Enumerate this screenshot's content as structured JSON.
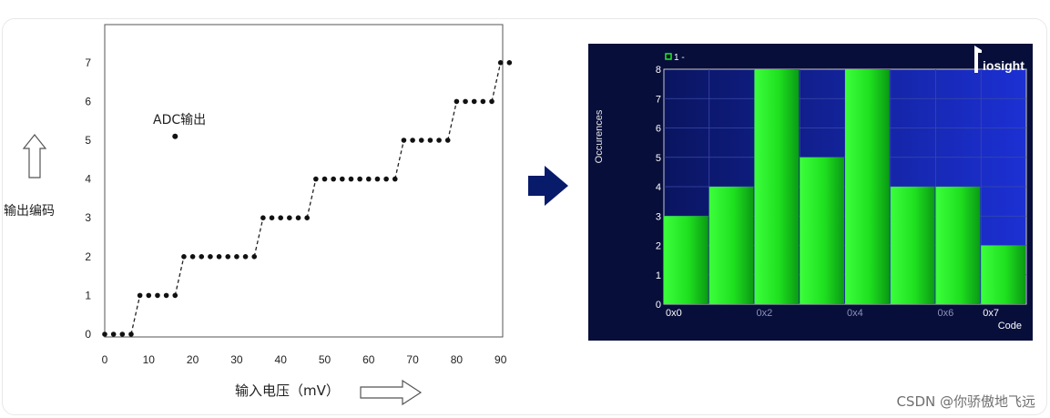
{
  "left_figure": {
    "y_axis_label": "输出编码",
    "x_axis_label": "输入电压（mV）",
    "annotation": "ADC输出",
    "chart_data": {
      "type": "scatter",
      "x_ticks": [
        0,
        10,
        20,
        30,
        40,
        50,
        60,
        70,
        80,
        90
      ],
      "y_ticks": [
        0,
        1,
        2,
        3,
        4,
        5,
        6,
        7
      ],
      "xlim": [
        0,
        95
      ],
      "ylim": [
        -0.2,
        8
      ],
      "points": [
        [
          0,
          0
        ],
        [
          2,
          0
        ],
        [
          4,
          0
        ],
        [
          6,
          0
        ],
        [
          8,
          1
        ],
        [
          10,
          1
        ],
        [
          12,
          1
        ],
        [
          14,
          1
        ],
        [
          16,
          1
        ],
        [
          18,
          2
        ],
        [
          20,
          2
        ],
        [
          22,
          2
        ],
        [
          24,
          2
        ],
        [
          26,
          2
        ],
        [
          28,
          2
        ],
        [
          30,
          2
        ],
        [
          32,
          2
        ],
        [
          34,
          2
        ],
        [
          36,
          3
        ],
        [
          38,
          3
        ],
        [
          40,
          3
        ],
        [
          42,
          3
        ],
        [
          44,
          3
        ],
        [
          46,
          3
        ],
        [
          48,
          4
        ],
        [
          50,
          4
        ],
        [
          52,
          4
        ],
        [
          54,
          4
        ],
        [
          56,
          4
        ],
        [
          58,
          4
        ],
        [
          60,
          4
        ],
        [
          62,
          4
        ],
        [
          64,
          4
        ],
        [
          66,
          4
        ],
        [
          68,
          5
        ],
        [
          70,
          5
        ],
        [
          72,
          5
        ],
        [
          74,
          5
        ],
        [
          76,
          5
        ],
        [
          78,
          5
        ],
        [
          80,
          6
        ],
        [
          82,
          6
        ],
        [
          84,
          6
        ],
        [
          86,
          6
        ],
        [
          88,
          6
        ],
        [
          90,
          7
        ],
        [
          92,
          7
        ]
      ],
      "legend_marker": [
        16,
        5.1
      ]
    }
  },
  "right_figure": {
    "legend_label": "1 -",
    "brand": "iosight",
    "chart_data": {
      "type": "bar",
      "ylabel": "Occurences",
      "xlabel": "Code",
      "y_ticks": [
        0,
        1,
        2,
        3,
        4,
        5,
        6,
        7,
        8
      ],
      "ylim": [
        0,
        8
      ],
      "x_tick_labels": [
        "0x0",
        "0x2",
        "0x4",
        "0x6",
        "0x7"
      ],
      "categories": [
        "0x0",
        "0x1",
        "0x2",
        "0x3",
        "0x4",
        "0x5",
        "0x6",
        "0x7"
      ],
      "values": [
        3,
        4,
        8,
        5,
        8,
        4,
        4,
        2
      ]
    }
  },
  "watermark": "CSDN @你骄傲地飞远",
  "colors": {
    "bar_fill": "#22ee22",
    "plot_bg_left": "#0a1560",
    "plot_bg_right": "#1a2ed0",
    "frame_bg": "#070e3a",
    "arrow": "#081a6a"
  }
}
